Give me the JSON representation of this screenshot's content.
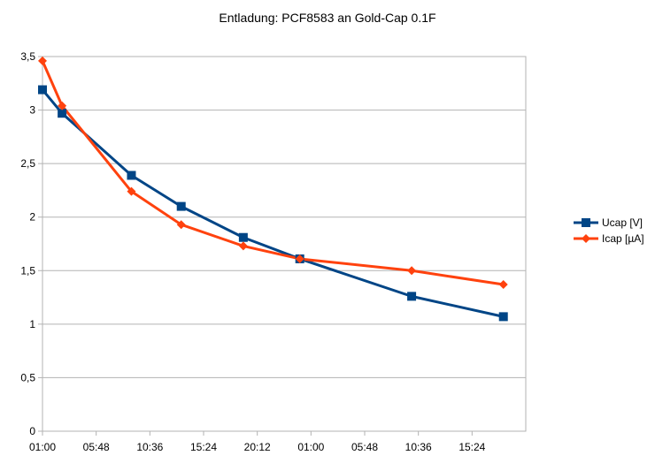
{
  "chart_data": {
    "type": "line",
    "title": "Entladung: PCF8583 an Gold-Cap 0.1F",
    "xlabel": "",
    "ylabel": "",
    "x_tick_labels": [
      "01:00",
      "05:48",
      "10:36",
      "15:24",
      "20:12",
      "01:00",
      "05:48",
      "10:36",
      "15:24"
    ],
    "x_tick_hours": [
      0,
      4.8,
      9.6,
      14.4,
      19.2,
      24,
      28.8,
      33.6,
      38.4
    ],
    "xlim_hours": [
      0,
      43.2
    ],
    "ylim": [
      0,
      3.5
    ],
    "y_ticks": [
      0,
      0.5,
      1,
      1.5,
      2,
      2.5,
      3,
      3.5
    ],
    "y_tick_labels": [
      "0",
      "0,5",
      "1",
      "1,5",
      "2",
      "2,5",
      "3",
      "3,5"
    ],
    "grid": true,
    "legend_position": "right",
    "series": [
      {
        "name": "Ucap [V]",
        "color": "#004586",
        "marker": "square",
        "x_hours": [
          0,
          1.75,
          7.95,
          12.4,
          17.95,
          23.0,
          33.0,
          41.2
        ],
        "values": [
          3.19,
          2.97,
          2.39,
          2.1,
          1.81,
          1.61,
          1.26,
          1.07
        ]
      },
      {
        "name": "Icap [µA]",
        "color": "#ff420e",
        "marker": "diamond",
        "x_hours": [
          0,
          1.75,
          7.95,
          12.4,
          17.95,
          23.0,
          33.0,
          41.2
        ],
        "values": [
          3.46,
          3.04,
          2.24,
          1.93,
          1.73,
          1.61,
          1.5,
          1.37
        ]
      }
    ]
  }
}
